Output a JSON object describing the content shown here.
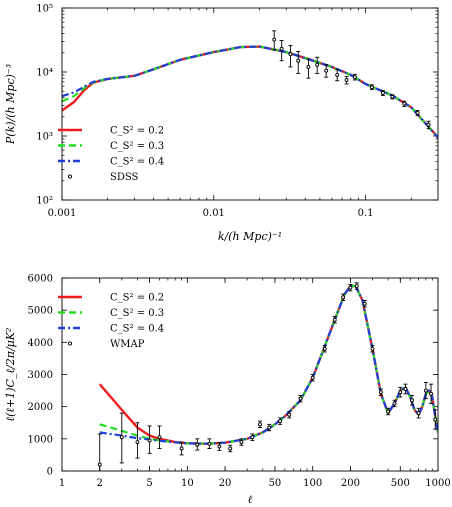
{
  "chart_data": [
    {
      "type": "line",
      "id": "power-spectrum",
      "xlabel": "k/(h Mpc)⁻¹",
      "ylabel": "P(k)/(h Mpc)⁻³",
      "xscale": "log",
      "yscale": "log",
      "xlim": [
        0.001,
        0.3
      ],
      "ylim": [
        100,
        100000
      ],
      "x_ticks": [
        0.001,
        0.01,
        0.1
      ],
      "x_tick_labels": [
        "0.001",
        "0.01",
        "0.1"
      ],
      "y_ticks": [
        100,
        1000,
        10000,
        100000
      ],
      "y_tick_labels": [
        "10²",
        "10³",
        "10⁴",
        "10⁵"
      ],
      "legend_position": "bottom-left",
      "series": [
        {
          "name": "C_S² = 0.2",
          "color": "#ee1c1c",
          "style": "solid",
          "points": [
            [
              0.001,
              2500
            ],
            [
              0.0012,
              3400
            ],
            [
              0.0014,
              5200
            ],
            [
              0.0016,
              6800
            ],
            [
              0.002,
              7800
            ],
            [
              0.003,
              8700
            ],
            [
              0.004,
              11000
            ],
            [
              0.006,
              15500
            ],
            [
              0.01,
              20500
            ],
            [
              0.015,
              24500
            ],
            [
              0.02,
              25000
            ],
            [
              0.03,
              20500
            ],
            [
              0.04,
              16500
            ],
            [
              0.06,
              12000
            ],
            [
              0.08,
              9000
            ],
            [
              0.1,
              6500
            ],
            [
              0.15,
              4300
            ],
            [
              0.2,
              2800
            ],
            [
              0.3,
              950
            ]
          ]
        },
        {
          "name": "C_S² = 0.3",
          "color": "#22dd22",
          "style": "dashed",
          "points": [
            [
              0.001,
              3500
            ],
            [
              0.0012,
              4200
            ],
            [
              0.0014,
              5600
            ],
            [
              0.0016,
              6900
            ],
            [
              0.002,
              7800
            ],
            [
              0.003,
              8700
            ],
            [
              0.004,
              11000
            ],
            [
              0.006,
              15500
            ],
            [
              0.01,
              20500
            ],
            [
              0.015,
              24500
            ],
            [
              0.02,
              25000
            ],
            [
              0.03,
              20500
            ],
            [
              0.04,
              16500
            ],
            [
              0.06,
              12000
            ],
            [
              0.08,
              9000
            ],
            [
              0.1,
              6500
            ],
            [
              0.15,
              4300
            ],
            [
              0.2,
              2800
            ],
            [
              0.3,
              950
            ]
          ]
        },
        {
          "name": "C_S² = 0.4",
          "color": "#1f3fd8",
          "style": "dashdot",
          "points": [
            [
              0.001,
              4200
            ],
            [
              0.0012,
              4800
            ],
            [
              0.0014,
              5900
            ],
            [
              0.0016,
              7000
            ],
            [
              0.002,
              7800
            ],
            [
              0.003,
              8700
            ],
            [
              0.004,
              11000
            ],
            [
              0.006,
              15500
            ],
            [
              0.01,
              20500
            ],
            [
              0.015,
              24500
            ],
            [
              0.02,
              25000
            ],
            [
              0.03,
              20500
            ],
            [
              0.04,
              16500
            ],
            [
              0.06,
              12000
            ],
            [
              0.08,
              9000
            ],
            [
              0.1,
              6500
            ],
            [
              0.15,
              4300
            ],
            [
              0.2,
              2800
            ],
            [
              0.3,
              950
            ]
          ]
        }
      ],
      "observations": {
        "name": "SDSS",
        "points": [
          {
            "x": 0.025,
            "y": 32000,
            "lo": 22000,
            "hi": 44000
          },
          {
            "x": 0.028,
            "y": 23000,
            "lo": 15000,
            "hi": 31000
          },
          {
            "x": 0.032,
            "y": 19000,
            "lo": 12000,
            "hi": 26000
          },
          {
            "x": 0.036,
            "y": 15000,
            "lo": 9500,
            "hi": 21000
          },
          {
            "x": 0.042,
            "y": 12000,
            "lo": 8000,
            "hi": 16000
          },
          {
            "x": 0.048,
            "y": 13000,
            "lo": 9500,
            "hi": 17000
          },
          {
            "x": 0.055,
            "y": 10500,
            "lo": 8300,
            "hi": 13000
          },
          {
            "x": 0.065,
            "y": 9000,
            "lo": 7300,
            "hi": 11000
          },
          {
            "x": 0.075,
            "y": 7500,
            "lo": 6500,
            "hi": 8500
          },
          {
            "x": 0.085,
            "y": 8300,
            "lo": 7500,
            "hi": 9200
          },
          {
            "x": 0.11,
            "y": 5800,
            "lo": 5300,
            "hi": 6300
          },
          {
            "x": 0.13,
            "y": 4700,
            "lo": 4300,
            "hi": 5100
          },
          {
            "x": 0.15,
            "y": 4100,
            "lo": 3800,
            "hi": 4400
          },
          {
            "x": 0.18,
            "y": 3200,
            "lo": 2900,
            "hi": 3500
          },
          {
            "x": 0.22,
            "y": 2300,
            "lo": 2100,
            "hi": 2500
          },
          {
            "x": 0.26,
            "y": 1500,
            "lo": 1300,
            "hi": 1700
          }
        ]
      }
    },
    {
      "type": "line",
      "id": "cmb-spectrum",
      "xlabel": "ℓ",
      "ylabel": "ℓ(ℓ+1)C_ℓ/2π/μK²",
      "xscale": "log",
      "yscale": "linear",
      "xlim": [
        1,
        1000
      ],
      "ylim": [
        0,
        6000
      ],
      "x_ticks": [
        1,
        2,
        5,
        10,
        20,
        50,
        100,
        200,
        500,
        1000
      ],
      "x_tick_labels": [
        "1",
        "2",
        "5",
        "10",
        "20",
        "50",
        "100",
        "200",
        "500",
        "1000"
      ],
      "y_ticks": [
        0,
        1000,
        2000,
        3000,
        4000,
        5000,
        6000
      ],
      "y_tick_labels": [
        "0",
        "1000",
        "2000",
        "3000",
        "4000",
        "5000",
        "6000"
      ],
      "legend_position": "top-left",
      "series": [
        {
          "name": "C_S² = 0.2",
          "color": "#ee1c1c",
          "style": "solid",
          "points": [
            [
              2,
              2700
            ],
            [
              3,
              1900
            ],
            [
              4,
              1350
            ],
            [
              5,
              1100
            ],
            [
              6,
              1000
            ],
            [
              8,
              900
            ],
            [
              10,
              860
            ],
            [
              15,
              850
            ],
            [
              20,
              880
            ],
            [
              30,
              1000
            ],
            [
              40,
              1200
            ],
            [
              50,
              1450
            ],
            [
              60,
              1700
            ],
            [
              80,
              2200
            ],
            [
              100,
              2900
            ],
            [
              120,
              3700
            ],
            [
              150,
              4700
            ],
            [
              180,
              5500
            ],
            [
              200,
              5750
            ],
            [
              220,
              5750
            ],
            [
              250,
              5300
            ],
            [
              300,
              3800
            ],
            [
              350,
              2400
            ],
            [
              400,
              1800
            ],
            [
              450,
              2100
            ],
            [
              500,
              2500
            ],
            [
              550,
              2600
            ],
            [
              600,
              2300
            ],
            [
              650,
              1900
            ],
            [
              700,
              1750
            ],
            [
              750,
              2000
            ],
            [
              800,
              2400
            ],
            [
              850,
              2500
            ],
            [
              900,
              2300
            ],
            [
              950,
              1700
            ],
            [
              1000,
              1200
            ]
          ]
        },
        {
          "name": "C_S² = 0.3",
          "color": "#22dd22",
          "style": "dashed",
          "points": [
            [
              2,
              1450
            ],
            [
              3,
              1250
            ],
            [
              4,
              1100
            ],
            [
              5,
              1000
            ],
            [
              6,
              950
            ],
            [
              8,
              890
            ],
            [
              10,
              860
            ],
            [
              15,
              850
            ],
            [
              20,
              880
            ],
            [
              30,
              1000
            ],
            [
              40,
              1200
            ],
            [
              50,
              1450
            ],
            [
              60,
              1700
            ],
            [
              80,
              2200
            ],
            [
              100,
              2900
            ],
            [
              120,
              3700
            ],
            [
              150,
              4700
            ],
            [
              180,
              5500
            ],
            [
              200,
              5750
            ],
            [
              220,
              5750
            ],
            [
              250,
              5300
            ],
            [
              300,
              3800
            ],
            [
              350,
              2400
            ],
            [
              400,
              1800
            ],
            [
              450,
              2100
            ],
            [
              500,
              2500
            ],
            [
              550,
              2600
            ],
            [
              600,
              2300
            ],
            [
              650,
              1900
            ],
            [
              700,
              1750
            ],
            [
              750,
              2000
            ],
            [
              800,
              2400
            ],
            [
              850,
              2500
            ],
            [
              900,
              2300
            ],
            [
              950,
              1700
            ],
            [
              1000,
              1200
            ]
          ]
        },
        {
          "name": "C_S² = 0.4",
          "color": "#1f3fd8",
          "style": "dashdot",
          "points": [
            [
              2,
              1200
            ],
            [
              3,
              1100
            ],
            [
              4,
              1020
            ],
            [
              5,
              980
            ],
            [
              6,
              940
            ],
            [
              8,
              890
            ],
            [
              10,
              860
            ],
            [
              15,
              850
            ],
            [
              20,
              880
            ],
            [
              30,
              1000
            ],
            [
              40,
              1200
            ],
            [
              50,
              1450
            ],
            [
              60,
              1700
            ],
            [
              80,
              2200
            ],
            [
              100,
              2900
            ],
            [
              120,
              3700
            ],
            [
              150,
              4700
            ],
            [
              180,
              5500
            ],
            [
              200,
              5750
            ],
            [
              220,
              5750
            ],
            [
              250,
              5300
            ],
            [
              300,
              3800
            ],
            [
              350,
              2400
            ],
            [
              400,
              1800
            ],
            [
              450,
              2100
            ],
            [
              500,
              2500
            ],
            [
              550,
              2600
            ],
            [
              600,
              2300
            ],
            [
              650,
              1900
            ],
            [
              700,
              1750
            ],
            [
              750,
              2000
            ],
            [
              800,
              2400
            ],
            [
              850,
              2500
            ],
            [
              900,
              2300
            ],
            [
              950,
              1700
            ],
            [
              1000,
              1200
            ]
          ]
        }
      ],
      "observations": {
        "name": "WMAP",
        "points": [
          {
            "x": 2,
            "y": 200,
            "lo": 0,
            "hi": 1150
          },
          {
            "x": 3,
            "y": 1050,
            "lo": 250,
            "hi": 1800
          },
          {
            "x": 4,
            "y": 900,
            "lo": 400,
            "hi": 1500
          },
          {
            "x": 5,
            "y": 950,
            "lo": 550,
            "hi": 1400
          },
          {
            "x": 6,
            "y": 1050,
            "lo": 700,
            "hi": 1400
          },
          {
            "x": 9,
            "y": 700,
            "lo": 500,
            "hi": 900
          },
          {
            "x": 12,
            "y": 820,
            "lo": 650,
            "hi": 1000
          },
          {
            "x": 15,
            "y": 850,
            "lo": 700,
            "hi": 1000
          },
          {
            "x": 18,
            "y": 760,
            "lo": 640,
            "hi": 880
          },
          {
            "x": 22,
            "y": 700,
            "lo": 600,
            "hi": 800
          },
          {
            "x": 27,
            "y": 900,
            "lo": 800,
            "hi": 1000
          },
          {
            "x": 33,
            "y": 1050,
            "lo": 950,
            "hi": 1150
          },
          {
            "x": 38,
            "y": 1450,
            "lo": 1350,
            "hi": 1550
          },
          {
            "x": 45,
            "y": 1350,
            "lo": 1250,
            "hi": 1450
          },
          {
            "x": 55,
            "y": 1550,
            "lo": 1450,
            "hi": 1650
          },
          {
            "x": 65,
            "y": 1750,
            "lo": 1650,
            "hi": 1850
          },
          {
            "x": 80,
            "y": 2250,
            "lo": 2150,
            "hi": 2350
          },
          {
            "x": 100,
            "y": 2900,
            "lo": 2800,
            "hi": 3000
          },
          {
            "x": 125,
            "y": 3800,
            "lo": 3700,
            "hi": 3900
          },
          {
            "x": 150,
            "y": 4700,
            "lo": 4600,
            "hi": 4800
          },
          {
            "x": 175,
            "y": 5400,
            "lo": 5300,
            "hi": 5500
          },
          {
            "x": 200,
            "y": 5700,
            "lo": 5600,
            "hi": 5800
          },
          {
            "x": 225,
            "y": 5750,
            "lo": 5650,
            "hi": 5850
          },
          {
            "x": 260,
            "y": 5200,
            "lo": 5100,
            "hi": 5300
          },
          {
            "x": 300,
            "y": 3800,
            "lo": 3700,
            "hi": 3900
          },
          {
            "x": 350,
            "y": 2450,
            "lo": 2350,
            "hi": 2550
          },
          {
            "x": 400,
            "y": 1850,
            "lo": 1750,
            "hi": 1950
          },
          {
            "x": 450,
            "y": 2100,
            "lo": 2000,
            "hi": 2200
          },
          {
            "x": 500,
            "y": 2450,
            "lo": 2300,
            "hi": 2600
          },
          {
            "x": 550,
            "y": 2550,
            "lo": 2400,
            "hi": 2700
          },
          {
            "x": 620,
            "y": 2200,
            "lo": 2050,
            "hi": 2350
          },
          {
            "x": 700,
            "y": 1800,
            "lo": 1650,
            "hi": 1950
          },
          {
            "x": 800,
            "y": 2500,
            "lo": 2250,
            "hi": 2750
          },
          {
            "x": 880,
            "y": 2400,
            "lo": 2100,
            "hi": 2700
          },
          {
            "x": 950,
            "y": 1600,
            "lo": 1300,
            "hi": 1900
          }
        ]
      }
    }
  ]
}
